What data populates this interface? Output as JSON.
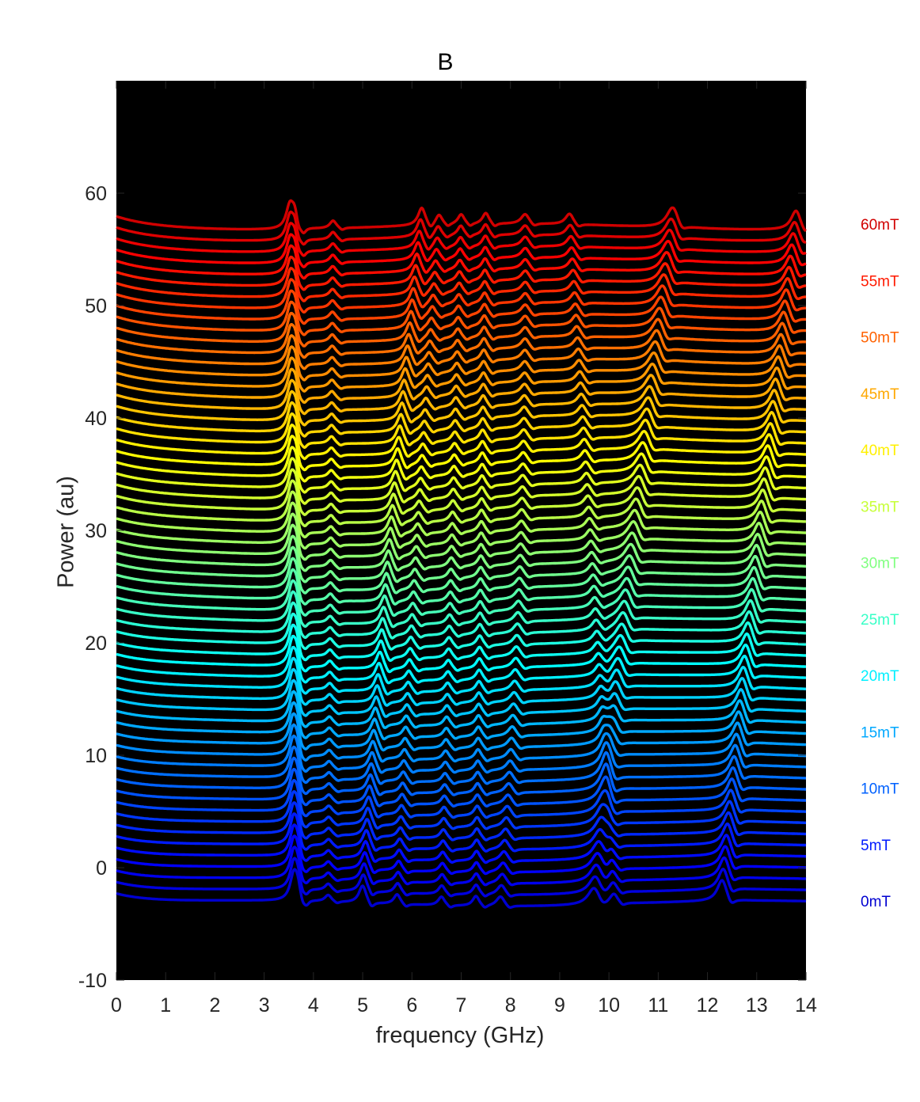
{
  "chart_data": {
    "type": "line",
    "title": "B",
    "xlabel": "frequency (GHz)",
    "ylabel": "Power (au)",
    "xlim": [
      0,
      14
    ],
    "ylim": [
      -10,
      70
    ],
    "x_ticks": [
      0,
      1,
      2,
      3,
      4,
      5,
      6,
      7,
      8,
      9,
      10,
      11,
      12,
      13,
      14
    ],
    "y_ticks": [
      -10,
      0,
      10,
      20,
      30,
      40,
      50,
      60
    ],
    "background": "#000000",
    "colormap": "jet",
    "series_count": 61,
    "field_range_mT": [
      0,
      60
    ],
    "offset_per_trace": 1.0,
    "baseline_first_trace": -3.2,
    "baseline_last_trace": 57.0,
    "legend_labels": [
      "60mT",
      "55mT",
      "50mT",
      "45mT",
      "40mT",
      "35mT",
      "30mT",
      "25mT",
      "20mT",
      "15mT",
      "10mT",
      "5mT",
      "0mT"
    ],
    "legend_placement": "right-outside",
    "peaks_at_0mT_GHz": [
      3.6,
      5.0,
      5.7,
      6.6,
      7.3,
      7.8,
      9.7,
      10.1,
      12.3
    ],
    "peaks_at_60mT_GHz": [
      3.5,
      3.6,
      4.4,
      6.2,
      6.5,
      7.0,
      7.5,
      8.3,
      9.2,
      9.5,
      11.3,
      13.8
    ]
  }
}
